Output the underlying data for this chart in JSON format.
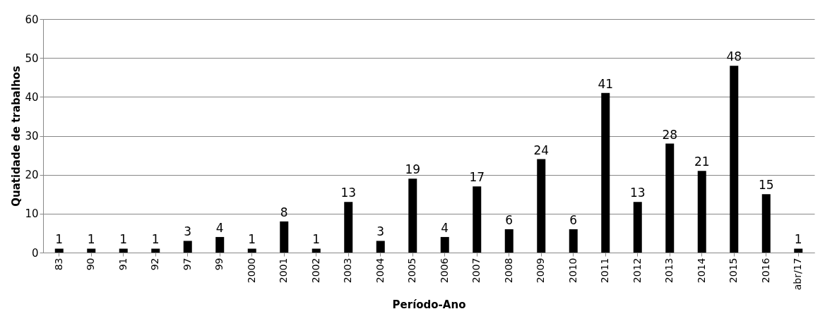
{
  "chart_data": {
    "type": "bar",
    "xlabel": "Período-Ano",
    "ylabel": "Quatidade de trabalhos",
    "categories": [
      "83",
      "90",
      "91",
      "92",
      "97",
      "99",
      "2000",
      "2001",
      "2002",
      "2003",
      "2004",
      "2005",
      "2006",
      "2007",
      "2008",
      "2009",
      "2010",
      "2011",
      "2012",
      "2013",
      "2014",
      "2015",
      "2016",
      "abr/17"
    ],
    "values": [
      1,
      1,
      1,
      1,
      3,
      4,
      1,
      8,
      1,
      13,
      3,
      19,
      4,
      17,
      6,
      24,
      6,
      41,
      13,
      28,
      21,
      48,
      15,
      1
    ],
    "color": "#000000",
    "ylim": [
      0,
      60
    ],
    "yticks": [
      0,
      10,
      20,
      30,
      40,
      50,
      60
    ],
    "grid": "y",
    "data_labels": true
  }
}
